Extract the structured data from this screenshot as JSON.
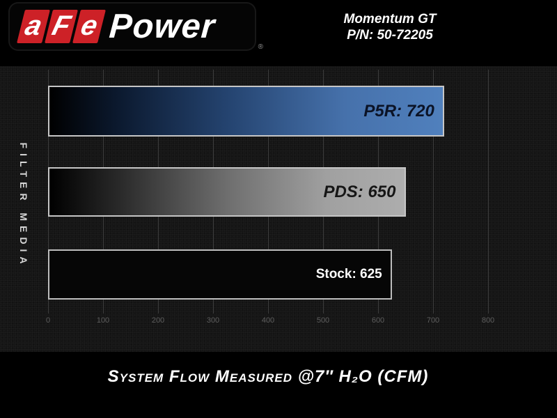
{
  "header": {
    "logo": {
      "letters": [
        "a",
        "F",
        "e"
      ],
      "wordmark": "Power",
      "registered_mark": "®"
    },
    "title_line1": "Momentum GT",
    "title_line2": "P/N: 50-72205"
  },
  "chart_data": {
    "type": "bar",
    "orientation": "horizontal",
    "title": "",
    "xlabel": "System Flow Measured @7″ H₂O (CFM)",
    "ylabel": "FILTER MEDIA",
    "categories": [
      "P5R",
      "PDS",
      "Stock"
    ],
    "values": [
      720,
      650,
      625
    ],
    "bar_labels": [
      "P5R: 720",
      "PDS: 650",
      "Stock: 625"
    ],
    "x_tick_labels": [
      "0",
      "100",
      "200",
      "300",
      "400",
      "500",
      "600",
      "700",
      "800"
    ],
    "xlim": [
      0,
      800
    ],
    "grid": true,
    "legend": "none",
    "colors": {
      "p5r_bar_end": "#5080bd",
      "pds_bar_end": "#adadad",
      "stock_bar": "#060606",
      "bar_border": "#c6c6c6",
      "logo_red": "#cd2127",
      "background": "#151515",
      "gridline": "#3c3c3c"
    }
  }
}
